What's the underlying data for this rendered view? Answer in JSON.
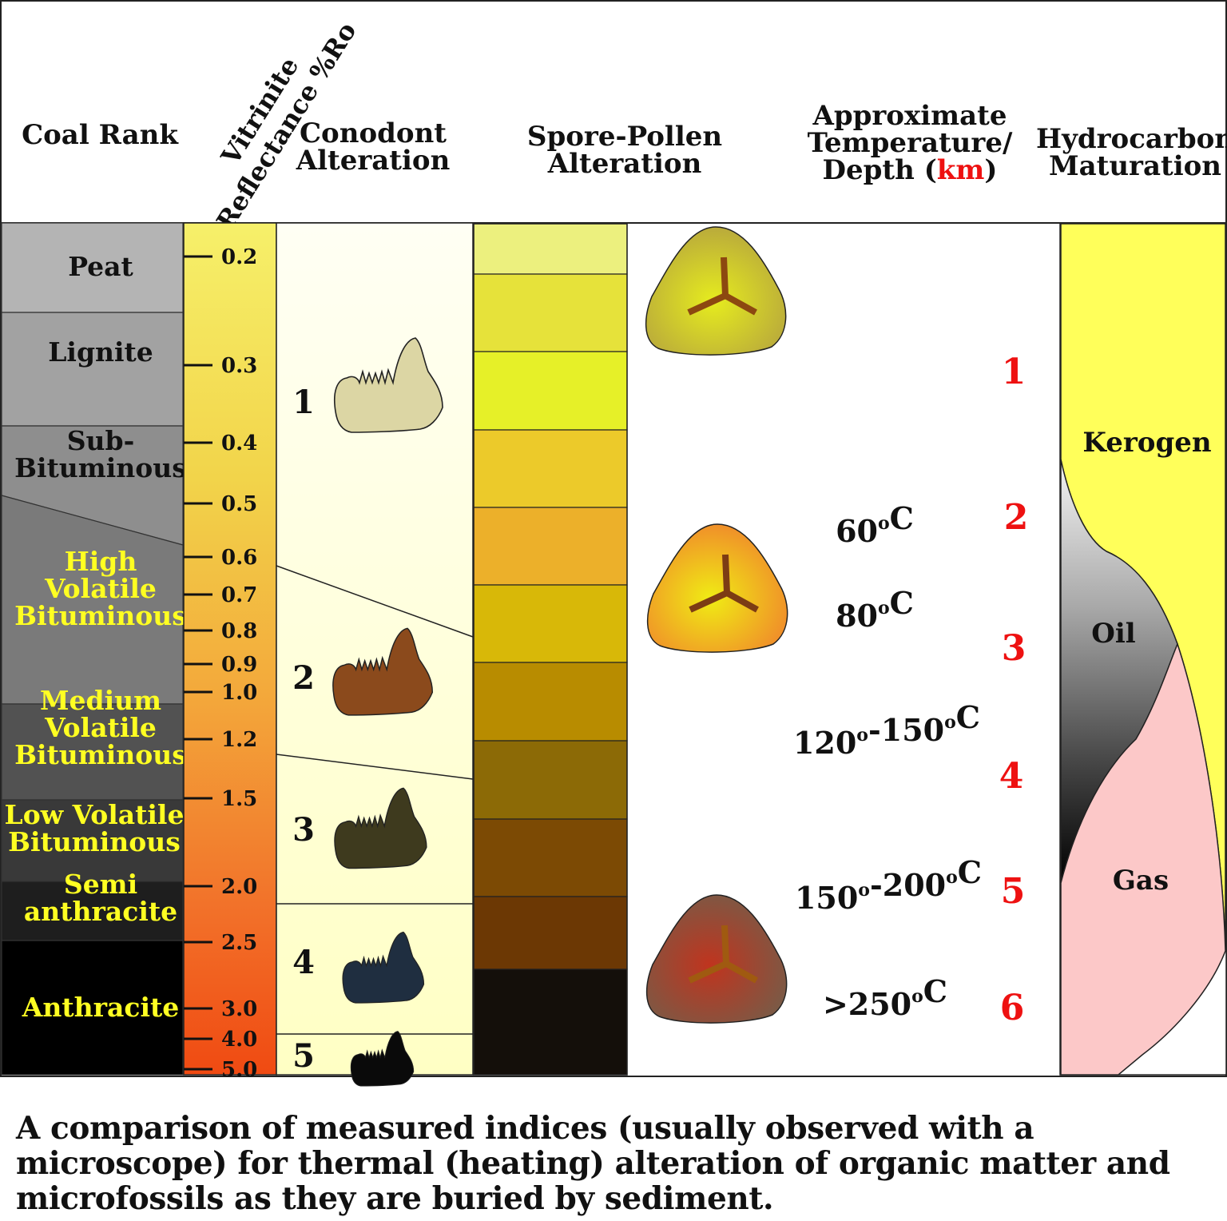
{
  "headers": {
    "coal_rank": "Coal Rank",
    "vitrinite_line1": "Vitrinite",
    "vitrinite_line2": "Reflectance %Ro",
    "conodont_line1": "Conodont",
    "conodont_line2": "Alteration",
    "spore_line1": "Spore-Pollen",
    "spore_line2": "Alteration",
    "temp_line1": "Approximate",
    "temp_line2": "Temperature/",
    "temp_line3_prefix": "Depth (",
    "temp_line3_km": "km",
    "temp_line3_suffix": ")",
    "hc_line1": "Hydrocarbon",
    "hc_line2": "Maturation"
  },
  "coal_ranks": [
    {
      "lines": [
        "Peat"
      ],
      "color": "#b4b4b4",
      "text_color": "#111111"
    },
    {
      "lines": [
        "Lignite"
      ],
      "color": "#a2a2a2",
      "text_color": "#111111"
    },
    {
      "lines": [
        "Sub-",
        "Bituminous"
      ],
      "color": "#8e8e8e",
      "text_color": "#111111"
    },
    {
      "lines": [
        "High",
        "Volatile",
        "Bituminous"
      ],
      "color": "#7a7a7a",
      "text_color": "#ffff22"
    },
    {
      "lines": [
        "Medium",
        "Volatile",
        "Bituminous"
      ],
      "color": "#525252",
      "text_color": "#ffff22"
    },
    {
      "lines": [
        "Low Volatile",
        "Bituminous"
      ],
      "color": "#393939",
      "text_color": "#ffff22"
    },
    {
      "lines": [
        "Semi",
        "anthracite"
      ],
      "color": "#1e1e1e",
      "text_color": "#ffff22"
    },
    {
      "lines": [
        "Anthracite"
      ],
      "color": "#000000",
      "text_color": "#ffff22"
    }
  ],
  "vitrinite_ticks": [
    "0.2",
    "0.3",
    "0.4",
    "0.5",
    "0.6",
    "0.7",
    "0.8",
    "0.9",
    "1.0",
    "1.2",
    "1.5",
    "2.0",
    "2.5",
    "3.0",
    "4.0",
    "5.0"
  ],
  "conodont_stages": [
    {
      "label": "1",
      "color": "#dcd6a4"
    },
    {
      "label": "2",
      "color": "#8b4a1c"
    },
    {
      "label": "3",
      "color": "#3e3a1e"
    },
    {
      "label": "4",
      "color": "#1f2e40"
    },
    {
      "label": "5",
      "color": "#0a0a0a"
    }
  ],
  "spore_colors": [
    "#ecf07e",
    "#e6e23a",
    "#e6f028",
    "#ecca2a",
    "#ecb02a",
    "#d8b808",
    "#b88c00",
    "#8c6a06",
    "#7c4a04",
    "#6c3804",
    "#140f0a"
  ],
  "grain_palettes": [
    {
      "center": "#e6ec1e",
      "edge": "#b8a83c",
      "y_mark": "#8c4810"
    },
    {
      "center": "#f0ec14",
      "edge": "#f08c2a",
      "y_mark": "#7c3c14"
    },
    {
      "center": "#c0341e",
      "edge": "#7a5a46",
      "y_mark": "#a05a10"
    }
  ],
  "temperatures": [
    "60°C",
    "80°C",
    "120°-150°C",
    "150°-200°C",
    ">250°C"
  ],
  "depths": [
    "1",
    "2",
    "3",
    "4",
    "5",
    "6"
  ],
  "maturation": {
    "kerogen": "Kerogen",
    "oil": "Oil",
    "gas": "Gas",
    "kerogen_color": "#ffff5a",
    "gas_color": "#fcc8c8"
  },
  "caption": "A comparison of measured indices (usually observed with a microscope) for thermal (heating) alteration of organic matter and microfossils as they are buried by sediment."
}
